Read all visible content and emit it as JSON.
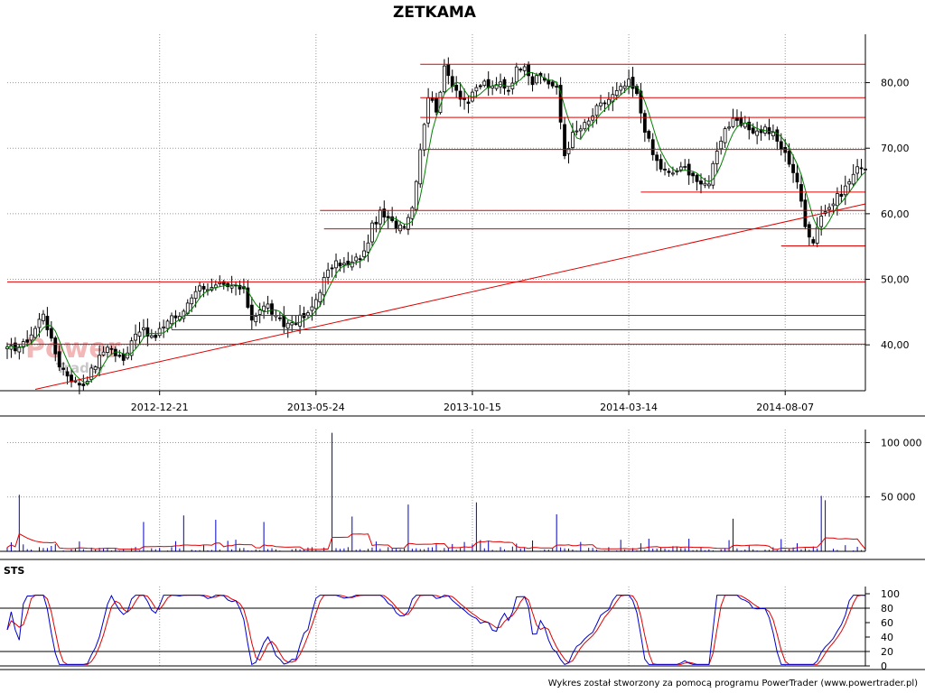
{
  "chart_data": {
    "type": "line",
    "title": "ZETKAMA",
    "footer": "Wykres został stworzony za pomocą programu PowerTrader (www.powertrader.pl)",
    "watermark": {
      "top": "Power",
      "bottom": "Trader"
    },
    "price_panel": {
      "series_type": "candlestick",
      "ylim": [
        33,
        86
      ],
      "y_ticks": [
        40,
        50,
        60,
        70,
        80
      ],
      "y_tick_labels": [
        "40,00",
        "50,00",
        "60,00",
        "70,00",
        "80,00"
      ],
      "x_ticks": [
        "2012-12-21",
        "2013-05-24",
        "2013-10-15",
        "2014-03-14",
        "2014-08-07"
      ],
      "grid": "dotted",
      "close_path": [
        [
          0,
          39.2
        ],
        [
          4,
          40
        ],
        [
          7,
          42.5
        ],
        [
          9,
          45
        ],
        [
          11,
          40.5
        ],
        [
          13,
          37
        ],
        [
          15,
          35.5
        ],
        [
          17,
          34.2
        ],
        [
          19,
          34
        ],
        [
          21,
          36
        ],
        [
          23,
          38
        ],
        [
          25,
          40
        ],
        [
          27,
          38.5
        ],
        [
          29,
          37.5
        ],
        [
          31,
          41
        ],
        [
          33,
          42.5
        ],
        [
          35,
          41.5
        ],
        [
          37,
          41
        ],
        [
          39,
          43
        ],
        [
          41,
          44.5
        ],
        [
          43,
          44
        ],
        [
          45,
          46.5
        ],
        [
          47,
          48.5
        ],
        [
          49,
          49
        ],
        [
          51,
          48.5
        ],
        [
          53,
          49
        ],
        [
          55,
          48.5
        ],
        [
          57,
          49
        ],
        [
          59,
          48
        ],
        [
          61,
          44
        ],
        [
          63,
          45.5
        ],
        [
          65,
          46
        ],
        [
          67,
          44
        ],
        [
          69,
          43
        ],
        [
          71,
          43.5
        ],
        [
          73,
          44
        ],
        [
          75,
          44.5
        ],
        [
          77,
          47
        ],
        [
          79,
          50
        ],
        [
          81,
          52
        ],
        [
          83,
          52.5
        ],
        [
          85,
          52
        ],
        [
          87,
          53
        ],
        [
          89,
          54
        ],
        [
          91,
          58
        ],
        [
          93,
          60
        ],
        [
          95,
          59
        ],
        [
          97,
          58.2
        ],
        [
          99,
          58.5
        ],
        [
          101,
          61
        ],
        [
          103,
          70
        ],
        [
          105,
          78
        ],
        [
          107,
          76
        ],
        [
          109,
          82
        ],
        [
          111,
          80
        ],
        [
          113,
          78
        ],
        [
          115,
          77
        ],
        [
          117,
          79
        ],
        [
          119,
          80
        ],
        [
          121,
          79
        ],
        [
          123,
          80
        ],
        [
          125,
          79
        ],
        [
          127,
          82
        ],
        [
          129,
          83
        ],
        [
          131,
          80
        ],
        [
          133,
          81
        ],
        [
          135,
          80
        ],
        [
          137,
          79
        ],
        [
          139,
          69
        ],
        [
          141,
          72
        ],
        [
          143,
          73
        ],
        [
          145,
          74
        ],
        [
          147,
          76
        ],
        [
          149,
          77
        ],
        [
          151,
          78
        ],
        [
          153,
          79
        ],
        [
          155,
          80
        ],
        [
          157,
          78
        ],
        [
          159,
          73
        ],
        [
          161,
          69
        ],
        [
          163,
          67
        ],
        [
          165,
          66
        ],
        [
          167,
          66.5
        ],
        [
          169,
          67
        ],
        [
          171,
          66
        ],
        [
          173,
          64
        ],
        [
          175,
          65
        ],
        [
          177,
          70
        ],
        [
          179,
          73
        ],
        [
          181,
          74
        ],
        [
          183,
          73.5
        ],
        [
          185,
          73
        ],
        [
          187,
          72.5
        ],
        [
          189,
          73
        ],
        [
          191,
          72
        ],
        [
          193,
          70
        ],
        [
          195,
          68
        ],
        [
          197,
          65
        ],
        [
          199,
          58
        ],
        [
          201,
          56
        ],
        [
          203,
          60
        ],
        [
          205,
          61
        ],
        [
          207,
          62.5
        ],
        [
          209,
          64
        ],
        [
          211,
          66
        ],
        [
          213,
          67.5
        ],
        [
          214,
          67
        ]
      ],
      "support_resistance_levels": [
        82.8,
        77.7,
        74.7,
        69.8,
        63.3,
        60.5,
        57.7,
        55.1,
        49.6,
        44.5,
        42.3,
        40.1
      ],
      "trendline": {
        "from": [
          7,
          33.2
        ],
        "to": [
          214,
          61.5
        ]
      }
    },
    "volume_panel": {
      "ylim": [
        0,
        112000
      ],
      "y_ticks": [
        50000,
        100000
      ],
      "y_tick_labels": [
        "50 000",
        "100 000"
      ],
      "spikes": [
        {
          "x": 3,
          "value": 52000
        },
        {
          "x": 34,
          "value": 27000
        },
        {
          "x": 44,
          "value": 33000
        },
        {
          "x": 52,
          "value": 29000
        },
        {
          "x": 64,
          "value": 27000
        },
        {
          "x": 81,
          "value": 109000
        },
        {
          "x": 86,
          "value": 32000
        },
        {
          "x": 100,
          "value": 43000
        },
        {
          "x": 117,
          "value": 45000
        },
        {
          "x": 137,
          "value": 34000
        },
        {
          "x": 181,
          "value": 30000
        },
        {
          "x": 203,
          "value": 51000
        },
        {
          "x": 204,
          "value": 47000
        }
      ],
      "avg_line_color": "#e00000",
      "bar_color": "#0000cc"
    },
    "sts_panel": {
      "label": "STS",
      "ylim": [
        0,
        100
      ],
      "y_ticks": [
        0,
        20,
        40,
        60,
        80,
        100
      ],
      "y_tick_labels": [
        "0",
        "20",
        "40",
        "60",
        "80",
        "100"
      ],
      "ref_lines": [
        20,
        80
      ],
      "series": [
        {
          "color": "#0000cc"
        },
        {
          "color": "#e00000"
        }
      ]
    }
  },
  "colors": {
    "accent": "#e00000",
    "candle": "#000000",
    "ma": "#008000",
    "axis": "#000000"
  }
}
